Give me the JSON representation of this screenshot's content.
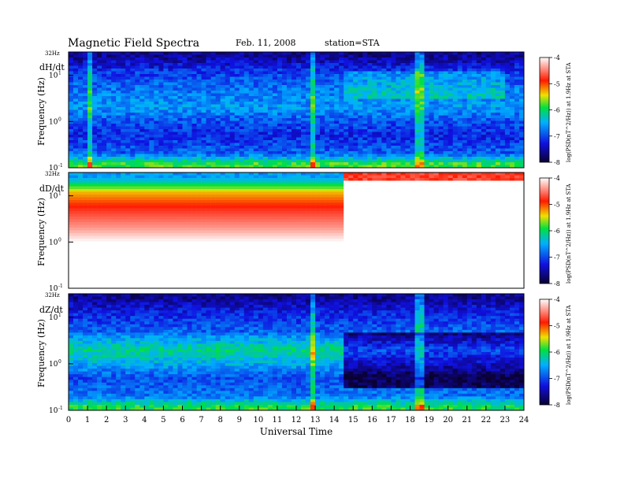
{
  "header": {
    "title": "Magnetic Field Spectra",
    "date": "Feb. 11, 2008",
    "station": "station=STA"
  },
  "x_axis": {
    "label": "Universal Time",
    "ticks": [
      "0",
      "1",
      "2",
      "3",
      "4",
      "5",
      "6",
      "7",
      "8",
      "9",
      "10",
      "11",
      "12",
      "13",
      "14",
      "15",
      "16",
      "17",
      "18",
      "19",
      "20",
      "21",
      "22",
      "23",
      "24"
    ],
    "range": [
      0,
      24
    ]
  },
  "y_axis": {
    "label": "Frequency (Hz)",
    "scale": "log",
    "range": [
      0.1,
      32
    ],
    "top_label": "32Hz",
    "tick_mantissas": [
      "10",
      "10",
      "10"
    ],
    "tick_exponents": [
      "1",
      "0",
      "-1"
    ],
    "tick_values": [
      10,
      1,
      0.1
    ]
  },
  "colorbar": {
    "label": "log(PSD(nT^2/Hz)) at 1.9Hz at STA",
    "range": [
      -8,
      -4
    ],
    "tick_labels": [
      "-4",
      "-5",
      "-6",
      "-7",
      "-8"
    ],
    "stops": [
      "#0a0030",
      "#1010e0",
      "#00b0ff",
      "#00e040",
      "#f0e000",
      "#ff1a00",
      "#ffffff"
    ]
  },
  "chart_data": [
    {
      "type": "heatmap",
      "panel_label": "dH/dt",
      "x_range_hours": [
        0,
        24
      ],
      "y_range_hz": [
        0.1,
        32
      ],
      "description_levels": {
        "band_frequencies_hz": [
          25,
          12,
          5,
          2,
          1,
          0.5,
          0.2,
          0.12
        ],
        "log_psd": [
          -7.6,
          -7.1,
          -6.8,
          -6.6,
          -7.0,
          -7.2,
          -6.9,
          -5.8
        ]
      },
      "events_hours": [
        1.1,
        12.9,
        18.5
      ]
    },
    {
      "type": "heatmap",
      "panel_label": "dD/dt",
      "x_range_hours": [
        0,
        24
      ],
      "y_range_hz": [
        0.1,
        32
      ],
      "description_levels": {
        "band_frequencies_hz": [
          25,
          12,
          5,
          2,
          1,
          0.5,
          0.2,
          0.12
        ],
        "log_psd": [
          -6.6,
          -5.3,
          -4.8,
          -4.4,
          -4.0,
          -4.0,
          -4.0,
          -4.0
        ]
      },
      "transition_hour": 14.4
    },
    {
      "type": "heatmap",
      "panel_label": "dZ/dt",
      "x_range_hours": [
        0,
        24
      ],
      "y_range_hz": [
        0.1,
        32
      ],
      "description_levels": {
        "band_frequencies_hz": [
          25,
          12,
          5,
          2,
          1,
          0.5,
          0.2,
          0.12
        ],
        "log_psd": [
          -7.6,
          -7.2,
          -6.9,
          -6.1,
          -6.5,
          -7.0,
          -6.8,
          -5.9
        ]
      },
      "transition_hour": 14.4,
      "events_hours": [
        12.9,
        18.5
      ]
    }
  ]
}
